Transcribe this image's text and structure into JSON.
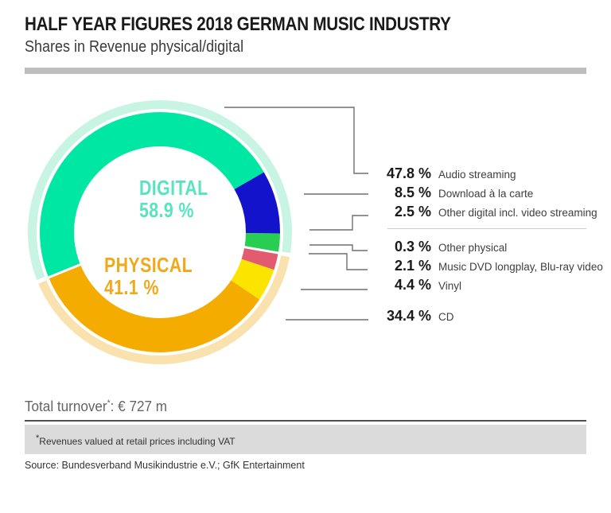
{
  "header": {
    "title": "HALF YEAR FIGURES 2018 GERMAN MUSIC INDUSTRY",
    "subtitle": "Shares in Revenue physical/digital"
  },
  "chart_data": {
    "type": "pie",
    "title": "Shares in Revenue physical/digital",
    "donut": true,
    "start_angle_deg": 247.9,
    "inner_ring": [
      {
        "label": "Audio streaming",
        "value": 47.8,
        "color": "#00E7A3",
        "group": "digital"
      },
      {
        "label": "Download à la carte",
        "value": 8.5,
        "color": "#1213CB",
        "group": "digital"
      },
      {
        "label": "Other digital incl. video streaming",
        "value": 2.5,
        "color": "#27CE52",
        "group": "digital"
      },
      {
        "label": "Other physical",
        "value": 0.3,
        "color": "#A41C3D",
        "group": "physical"
      },
      {
        "label": "Music DVD longplay, Blu-ray video",
        "value": 2.1,
        "color": "#E25B6E",
        "group": "physical"
      },
      {
        "label": "Vinyl",
        "value": 4.4,
        "color": "#FBE500",
        "group": "physical"
      },
      {
        "label": "CD",
        "value": 34.4,
        "color": "#F5AC00",
        "group": "physical"
      }
    ],
    "outer_ring": [
      {
        "label": "Digital",
        "value": 58.9,
        "color": "#C8F4E4"
      },
      {
        "label": "Physical",
        "value": 41.1,
        "color": "#FAE2AE"
      }
    ],
    "legend_position": "right",
    "grid": false
  },
  "center_labels": {
    "digital": {
      "name": "DIGITAL",
      "value": "58.9 %",
      "color": "#58E3C1"
    },
    "physical": {
      "name": "PHYSICAL",
      "value": "41.1 %",
      "color": "#F0A91C"
    }
  },
  "legend": {
    "items": [
      {
        "value": "47.8 %",
        "label": "Audio streaming"
      },
      {
        "value": "8.5 %",
        "label": "Download à la carte"
      },
      {
        "value": "2.5 %",
        "label": "Other digital incl. video streaming"
      },
      {
        "value": "0.3 %",
        "label": "Other physical"
      },
      {
        "value": "2.1 %",
        "label": "Music DVD longplay, Blu-ray video"
      },
      {
        "value": "4.4 %",
        "label": "Vinyl"
      },
      {
        "value": "34.4 %",
        "label": "CD"
      }
    ]
  },
  "summary": {
    "total_label": "Total turnover",
    "total_sup": "*",
    "total_value": ": € 727 m"
  },
  "footnote": {
    "sup": "*",
    "text": "Revenues valued at retail prices including VAT"
  },
  "source": "Source: Bundesverband Musikindustrie e.V.; GfK Entertainment",
  "colors": {
    "connector": "#6E6E6E",
    "divider": "#CBCBCB",
    "header_bar": "#BEBEBE",
    "rule_dark": "#4D4D4D",
    "footnote_box": "#DBDBDB"
  }
}
